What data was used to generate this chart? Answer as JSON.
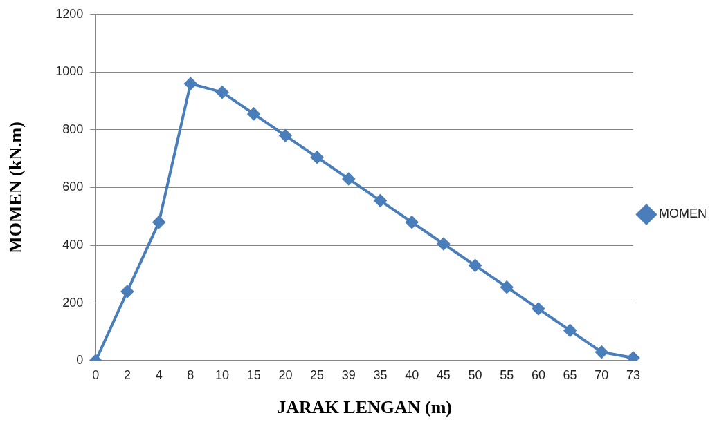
{
  "chart_data": {
    "type": "line",
    "xlabel": "JARAK LENGAN (m)",
    "ylabel": "MOMEN (kN.m)",
    "categories": [
      "0",
      "2",
      "4",
      "8",
      "10",
      "15",
      "20",
      "25",
      "39",
      "35",
      "40",
      "45",
      "50",
      "55",
      "60",
      "65",
      "70",
      "73"
    ],
    "series": [
      {
        "name": "MOMEN",
        "color": "#4a7ebb",
        "values": [
          0,
          240,
          480,
          960,
          930,
          855,
          780,
          705,
          630,
          555,
          480,
          405,
          330,
          255,
          180,
          105,
          30,
          10
        ]
      }
    ],
    "ylim": [
      0,
      1200
    ],
    "yticks": [
      0,
      200,
      400,
      600,
      800,
      1000,
      1200
    ],
    "grid": "y",
    "legend": "right",
    "marker": "diamond",
    "line_style": "solid"
  }
}
